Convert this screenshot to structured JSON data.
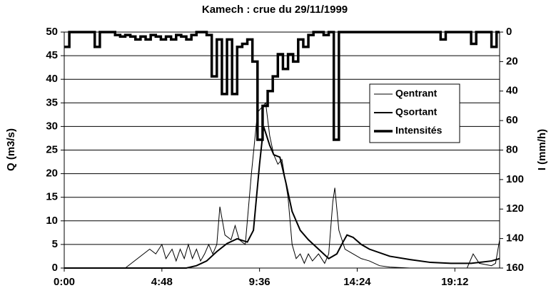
{
  "chart_data": {
    "type": "line",
    "title": "Kamech : crue du 29/11/1999",
    "ylabel": "Q (m3/s)",
    "y2label": "I (mm/h)",
    "xlim": [
      0,
      21.4
    ],
    "xticks": [
      {
        "value": 0,
        "label": "0:00"
      },
      {
        "value": 4.8,
        "label": "4:48"
      },
      {
        "value": 9.6,
        "label": "9:36"
      },
      {
        "value": 14.4,
        "label": "14:24"
      },
      {
        "value": 19.2,
        "label": "19:12"
      }
    ],
    "ylim": [
      0,
      50
    ],
    "yticks": [
      0,
      5,
      10,
      15,
      20,
      25,
      30,
      35,
      40,
      45,
      50
    ],
    "y2lim": [
      160,
      0
    ],
    "y2ticks": [
      0,
      20,
      40,
      60,
      80,
      100,
      120,
      140,
      160
    ],
    "grid": true,
    "legend": "right",
    "series": [
      {
        "name": "Qentrant",
        "color": "#000000",
        "linewidth": 1,
        "x": [
          0,
          3,
          3.3,
          3.6,
          3.9,
          4.2,
          4.5,
          4.8,
          5.0,
          5.3,
          5.5,
          5.7,
          5.9,
          6.1,
          6.3,
          6.5,
          6.7,
          6.9,
          7.1,
          7.3,
          7.5,
          7.65,
          7.9,
          8.2,
          8.4,
          8.6,
          8.9,
          9.2,
          9.5,
          9.9,
          10.1,
          10.3,
          10.5,
          10.7,
          11.0,
          11.2,
          11.4,
          11.6,
          11.8,
          12.0,
          12.2,
          12.5,
          12.8,
          13.0,
          13.2,
          13.3,
          13.5,
          13.8,
          14.2,
          14.6,
          15.0,
          15.5,
          16.0,
          17,
          19.8,
          20.1,
          20.4,
          21,
          21.2,
          21.4
        ],
        "values": [
          0,
          0,
          1,
          2,
          3,
          4,
          3,
          5,
          2,
          4,
          1.5,
          4,
          2,
          5,
          2,
          4,
          1.5,
          3,
          5,
          3,
          5,
          13,
          7,
          6,
          9,
          6,
          5,
          20,
          33,
          35,
          28,
          24,
          22,
          23,
          15,
          5,
          2,
          3,
          1,
          3,
          1.5,
          3,
          1,
          3,
          14,
          17,
          8,
          4,
          3,
          2,
          1.5,
          0.5,
          0.2,
          0,
          0,
          3,
          1,
          0.5,
          1,
          6
        ]
      },
      {
        "name": "Qsortant",
        "color": "#000000",
        "linewidth": 2,
        "x": [
          0,
          6,
          6.5,
          7,
          7.5,
          8,
          8.5,
          9,
          9.3,
          9.6,
          9.8,
          10.1,
          10.3,
          10.6,
          10.9,
          11.2,
          11.6,
          12,
          12.5,
          13,
          13.4,
          13.7,
          13.9,
          14.2,
          14.6,
          15,
          16,
          17,
          18,
          19,
          20,
          21,
          21.4
        ],
        "values": [
          0,
          0,
          0.5,
          1.5,
          3.5,
          5.2,
          6.2,
          5.5,
          8,
          22,
          30,
          26,
          24,
          23.5,
          18,
          12,
          8,
          6,
          4,
          2,
          3,
          5.5,
          7,
          6.5,
          5,
          4,
          2.5,
          1.8,
          1.2,
          1,
          1,
          1.5,
          2
        ]
      },
      {
        "name": "Intensités",
        "color": "#000000",
        "linewidth": 3.5,
        "axis": "y2",
        "drawstyle": "steps",
        "x": [
          0,
          0.25,
          0.5,
          0.75,
          1,
          1.25,
          1.5,
          1.75,
          2,
          2.25,
          2.5,
          2.75,
          3,
          3.25,
          3.5,
          3.75,
          4,
          4.25,
          4.5,
          4.75,
          5,
          5.25,
          5.5,
          5.75,
          6,
          6.25,
          6.5,
          6.75,
          7,
          7.25,
          7.5,
          7.75,
          8,
          8.25,
          8.5,
          8.75,
          9,
          9.25,
          9.5,
          9.75,
          10,
          10.25,
          10.5,
          10.75,
          11,
          11.25,
          11.5,
          11.75,
          12,
          12.25,
          12.5,
          12.75,
          13,
          13.25,
          13.5,
          13.75,
          14,
          14.25,
          14.5,
          14.75,
          15,
          15.25,
          15.5,
          15.75,
          16,
          16.25,
          16.5,
          16.75,
          17,
          17.25,
          17.5,
          17.75,
          18,
          18.25,
          18.5,
          18.75,
          19,
          19.25,
          19.5,
          19.75,
          20,
          20.25,
          20.5,
          20.75,
          21,
          21.25
        ],
        "values": [
          10,
          0,
          0,
          0,
          0,
          0,
          10,
          0,
          0,
          0,
          2,
          3,
          2,
          3,
          5,
          3,
          5,
          2,
          3,
          5,
          3,
          5,
          2,
          3,
          5,
          2,
          0,
          0,
          2,
          30,
          5,
          42,
          5,
          42,
          10,
          8,
          5,
          20,
          73,
          50,
          40,
          30,
          15,
          25,
          15,
          20,
          5,
          10,
          2,
          0,
          0,
          2,
          0,
          73,
          0,
          0,
          0,
          0,
          0,
          0,
          0,
          0,
          0,
          0,
          0,
          0,
          0,
          0,
          0,
          0,
          0,
          0,
          0,
          0,
          5,
          0,
          0,
          0,
          0,
          0,
          8,
          0,
          0,
          0,
          10,
          0
        ]
      }
    ]
  }
}
